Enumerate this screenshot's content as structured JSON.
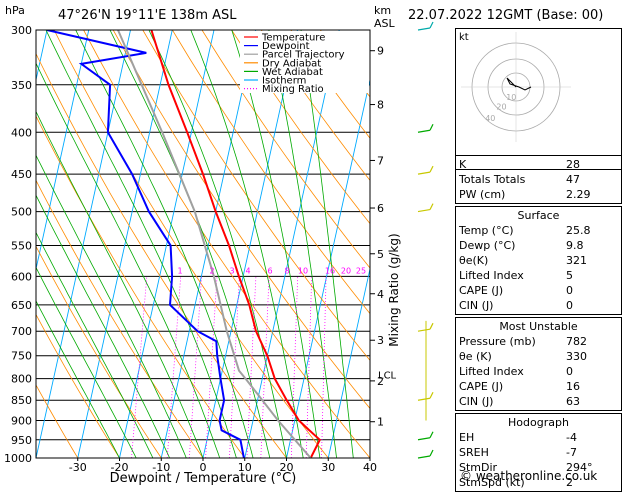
{
  "header": {
    "hpa_label": "hPa",
    "location": "47°26'N 19°11'E 138m ASL",
    "km_label": "km",
    "asl_label": "ASL",
    "datetime": "22.07.2022 12GMT (Base: 00)"
  },
  "footer": {
    "credit": "© weatheronline.co.uk"
  },
  "hodograph": {
    "label": "kt",
    "ring_labels": [
      "10",
      "20",
      "40"
    ]
  },
  "legend": [
    {
      "label": "Temperature",
      "color": "#ff0000"
    },
    {
      "label": "Dewpoint",
      "color": "#0000ff"
    },
    {
      "label": "Parcel Trajectory",
      "color": "#a0a0a0"
    },
    {
      "label": "Dry Adiabat",
      "color": "#ff8c00"
    },
    {
      "label": "Wet Adiabat",
      "color": "#00aa00"
    },
    {
      "label": "Isotherm",
      "color": "#00aaff"
    },
    {
      "label": "Mixing Ratio",
      "color": "#ff00ff"
    }
  ],
  "indices": [
    {
      "label": "K",
      "value": "28"
    },
    {
      "label": "Totals Totals",
      "value": "47"
    },
    {
      "label": "PW (cm)",
      "value": "2.29"
    }
  ],
  "surface": {
    "title": "Surface",
    "rows": [
      {
        "label": "Temp (°C)",
        "value": "25.8"
      },
      {
        "label": "Dewp (°C)",
        "value": "9.8"
      },
      {
        "label": "θe(K)",
        "value": "321"
      },
      {
        "label": "Lifted Index",
        "value": "5"
      },
      {
        "label": "CAPE (J)",
        "value": "0"
      },
      {
        "label": "CIN (J)",
        "value": "0"
      }
    ]
  },
  "most_unstable": {
    "title": "Most Unstable",
    "rows": [
      {
        "label": "Pressure (mb)",
        "value": "782"
      },
      {
        "label": "θe (K)",
        "value": "330"
      },
      {
        "label": "Lifted Index",
        "value": "0"
      },
      {
        "label": "CAPE (J)",
        "value": "16"
      },
      {
        "label": "CIN (J)",
        "value": "63"
      }
    ]
  },
  "hodograph_table": {
    "title": "Hodograph",
    "rows": [
      {
        "label": "EH",
        "value": "-4"
      },
      {
        "label": "SREH",
        "value": "-7"
      },
      {
        "label": "StmDir",
        "value": "294°"
      },
      {
        "label": "StmSpd (kt)",
        "value": "2"
      }
    ]
  },
  "chart_data": {
    "type": "line",
    "xlabel": "Dewpoint / Temperature (°C)",
    "ylabel": "Mixing Ratio (g/kg)",
    "x_ticks": [
      -30,
      -20,
      -10,
      0,
      10,
      20,
      30,
      40
    ],
    "xlim": [
      -40,
      40
    ],
    "pressure_levels": [
      300,
      350,
      400,
      450,
      500,
      550,
      600,
      650,
      700,
      750,
      800,
      850,
      900,
      950,
      1000
    ],
    "ylim": [
      1000,
      300
    ],
    "height_ticks": [
      {
        "km": "1",
        "p": 903
      },
      {
        "km": "2",
        "p": 805
      },
      {
        "km": "3",
        "p": 718
      },
      {
        "km": "4",
        "p": 630
      },
      {
        "km": "5",
        "p": 563
      },
      {
        "km": "6",
        "p": 495
      },
      {
        "km": "7",
        "p": 433
      },
      {
        "km": "8",
        "p": 370
      },
      {
        "km": "9",
        "p": 318
      }
    ],
    "lcl": {
      "label": "LCL",
      "p": 791
    },
    "mixing_ratio_labels": [
      "1",
      "2",
      "3",
      "4",
      "6",
      "8",
      "10",
      "16",
      "20",
      "25"
    ],
    "mixing_ratios": [
      1,
      2,
      3,
      4,
      6,
      8,
      10,
      16,
      20,
      25
    ],
    "series": [
      {
        "name": "Temperature",
        "color": "#ff0000",
        "points": [
          [
            1000,
            25.8
          ],
          [
            950,
            27
          ],
          [
            925,
            24
          ],
          [
            900,
            21
          ],
          [
            850,
            17
          ],
          [
            800,
            13
          ],
          [
            750,
            10
          ],
          [
            700,
            6
          ],
          [
            650,
            3
          ],
          [
            600,
            -1
          ],
          [
            550,
            -5
          ],
          [
            500,
            -10
          ],
          [
            450,
            -15
          ],
          [
            400,
            -21
          ],
          [
            350,
            -28
          ],
          [
            300,
            -35
          ]
        ]
      },
      {
        "name": "Dewpoint",
        "color": "#0000ff",
        "points": [
          [
            1000,
            9.8
          ],
          [
            950,
            8
          ],
          [
            925,
            3
          ],
          [
            900,
            2
          ],
          [
            850,
            2
          ],
          [
            800,
            0
          ],
          [
            750,
            -2
          ],
          [
            720,
            -3
          ],
          [
            700,
            -8
          ],
          [
            650,
            -16
          ],
          [
            600,
            -17
          ],
          [
            550,
            -19
          ],
          [
            500,
            -26
          ],
          [
            450,
            -32
          ],
          [
            400,
            -40
          ],
          [
            350,
            -42
          ],
          [
            330,
            -50
          ],
          [
            320,
            -35
          ],
          [
            300,
            -60
          ]
        ]
      },
      {
        "name": "Parcel Trajectory",
        "color": "#a0a0a0",
        "points": [
          [
            1000,
            25.8
          ],
          [
            900,
            16
          ],
          [
            800,
            6
          ],
          [
            782,
            4
          ],
          [
            700,
            -1
          ],
          [
            600,
            -7
          ],
          [
            500,
            -15
          ],
          [
            400,
            -27
          ],
          [
            300,
            -43
          ]
        ]
      }
    ],
    "wind_barbs": [
      {
        "p": 1000,
        "color": "#00aa00"
      },
      {
        "p": 950,
        "color": "#00aa00"
      },
      {
        "p": 850,
        "color": "#c8c800"
      },
      {
        "p": 700,
        "color": "#c8c800"
      },
      {
        "p": 500,
        "color": "#c8c800"
      },
      {
        "p": 450,
        "color": "#c8c800"
      },
      {
        "p": 400,
        "color": "#00aa00"
      },
      {
        "p": 300,
        "color": "#00aaaa"
      }
    ],
    "hodograph_points": [
      [
        0,
        0
      ],
      [
        -1,
        1
      ],
      [
        -3,
        3
      ],
      [
        -2,
        1
      ],
      [
        1,
        0
      ],
      [
        3,
        -1
      ],
      [
        5,
        0
      ]
    ]
  }
}
